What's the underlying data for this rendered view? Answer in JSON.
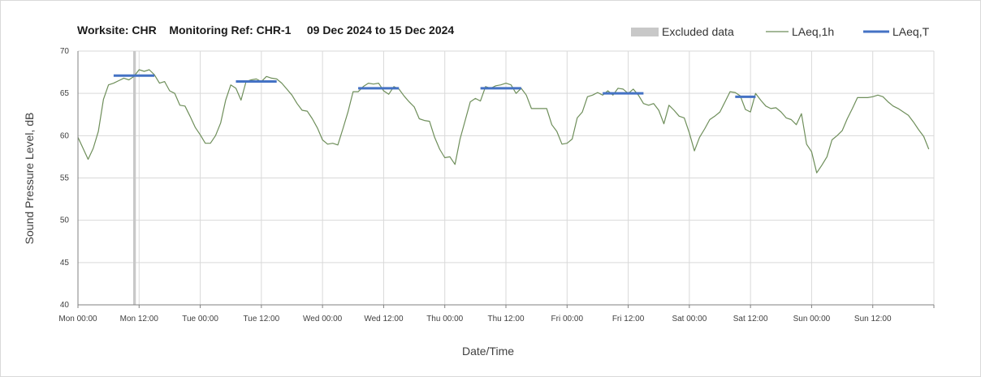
{
  "chart_data": {
    "type": "line",
    "title": "Worksite: CHR    Monitoring Ref: CHR-1     09 Dec 2024 to 15 Dec 2024",
    "xlabel": "Date/Time",
    "ylabel": "Sound Pressure Level, dB",
    "ylim": [
      40,
      70
    ],
    "yticks": [
      40,
      45,
      50,
      55,
      60,
      65,
      70
    ],
    "xlim": [
      0,
      168
    ],
    "xticks": [
      {
        "x": 0,
        "label": "Mon 00:00"
      },
      {
        "x": 12,
        "label": "Mon 12:00"
      },
      {
        "x": 24,
        "label": "Tue 00:00"
      },
      {
        "x": 36,
        "label": "Tue 12:00"
      },
      {
        "x": 48,
        "label": "Wed 00:00"
      },
      {
        "x": 60,
        "label": "Wed 12:00"
      },
      {
        "x": 72,
        "label": "Thu 00:00"
      },
      {
        "x": 84,
        "label": "Thu 12:00"
      },
      {
        "x": 96,
        "label": "Fri 00:00"
      },
      {
        "x": 108,
        "label": "Fri 12:00"
      },
      {
        "x": 120,
        "label": "Sat 00:00"
      },
      {
        "x": 132,
        "label": "Sat 12:00"
      },
      {
        "x": 144,
        "label": "Sun 00:00"
      },
      {
        "x": 156,
        "label": "Sun 12:00"
      }
    ],
    "grid": true,
    "legend_position": "top-right",
    "legend": {
      "excluded_label": "Excluded data",
      "hourly_label": "LAeq,1h",
      "period_label": "LAeq,T"
    },
    "colors": {
      "excluded": "#c8c8c8",
      "hourly": "#6e8e5a",
      "period": "#4472c4",
      "grid": "#d9d9d9"
    },
    "excluded_periods": [
      [
        11,
        12
      ]
    ],
    "series": [
      {
        "name": "LAeq,1h",
        "x": [
          0,
          1,
          2,
          3,
          4,
          5,
          6,
          7,
          8,
          9,
          10,
          11,
          12,
          13,
          14,
          15,
          16,
          17,
          18,
          19,
          20,
          21,
          22,
          23,
          24,
          25,
          26,
          27,
          28,
          29,
          30,
          31,
          32,
          33,
          34,
          35,
          36,
          37,
          38,
          39,
          40,
          41,
          42,
          43,
          44,
          45,
          46,
          47,
          48,
          49,
          50,
          51,
          52,
          53,
          54,
          55,
          56,
          57,
          58,
          59,
          60,
          61,
          62,
          63,
          64,
          65,
          66,
          67,
          68,
          69,
          70,
          71,
          72,
          73,
          74,
          75,
          76,
          77,
          78,
          79,
          80,
          81,
          82,
          83,
          84,
          85,
          86,
          87,
          88,
          89,
          90,
          91,
          92,
          93,
          94,
          95,
          96,
          97,
          98,
          99,
          100,
          101,
          102,
          103,
          104,
          105,
          106,
          107,
          108,
          109,
          110,
          111,
          112,
          113,
          114,
          115,
          116,
          117,
          118,
          119,
          120,
          121,
          122,
          123,
          124,
          125,
          126,
          127,
          128,
          129,
          130,
          131,
          132,
          133,
          134,
          135,
          136,
          137,
          138,
          139,
          140,
          141,
          142,
          143,
          144,
          145,
          146,
          147,
          148,
          149,
          150,
          151,
          152,
          153,
          154,
          155,
          156,
          157,
          158,
          159,
          160,
          161,
          162,
          163,
          164,
          165,
          166,
          167
        ],
        "y": [
          59.8,
          58.5,
          57.2,
          58.5,
          60.5,
          64.3,
          66.0,
          66.2,
          66.5,
          66.8,
          66.6,
          67.0,
          67.8,
          67.6,
          67.8,
          67.2,
          66.2,
          66.4,
          65.3,
          65.0,
          63.6,
          63.5,
          62.3,
          61.0,
          60.1,
          59.1,
          59.1,
          60.0,
          61.5,
          64.2,
          66.0,
          65.6,
          64.2,
          66.4,
          66.6,
          66.7,
          66.4,
          67.0,
          66.8,
          66.7,
          66.2,
          65.5,
          64.8,
          63.8,
          63.0,
          62.9,
          62.0,
          60.9,
          59.5,
          59.0,
          59.1,
          58.9,
          60.8,
          62.8,
          65.2,
          65.2,
          65.8,
          66.2,
          66.1,
          66.2,
          65.3,
          64.9,
          65.8,
          65.5,
          64.7,
          64.0,
          63.4,
          62.0,
          61.8,
          61.7,
          59.8,
          58.4,
          57.4,
          57.5,
          56.6,
          59.6,
          61.8,
          64.0,
          64.4,
          64.1,
          65.8,
          65.6,
          65.9,
          66.0,
          66.2,
          66.0,
          65.0,
          65.6,
          64.8,
          63.2,
          63.2,
          63.2,
          63.2,
          61.3,
          60.5,
          59.0,
          59.1,
          59.6,
          62.1,
          62.8,
          64.6,
          64.8,
          65.1,
          64.8,
          65.3,
          64.8,
          65.6,
          65.5,
          65.0,
          65.5,
          64.8,
          63.8,
          63.6,
          63.8,
          63.0,
          61.4,
          63.6,
          63.0,
          62.3,
          62.1,
          60.3,
          58.2,
          59.8,
          60.8,
          61.9,
          62.3,
          62.8,
          64.0,
          65.2,
          65.1,
          64.7,
          63.1,
          62.8,
          65.0,
          64.2,
          63.5,
          63.2,
          63.3,
          62.8,
          62.1,
          61.9,
          61.3,
          62.6,
          59.0,
          58.1,
          55.6,
          56.5,
          57.5,
          59.5,
          60.0,
          60.6,
          62.0,
          63.2,
          64.5,
          64.5,
          64.5,
          64.6,
          64.8,
          64.6,
          64.0,
          63.5,
          63.2,
          62.8,
          62.4,
          61.6,
          60.7,
          59.9,
          58.4
        ]
      },
      {
        "name": "LAeq,T",
        "segments": [
          {
            "x": [
              7,
              15
            ],
            "y": 67.1
          },
          {
            "x": [
              31,
              39
            ],
            "y": 66.4
          },
          {
            "x": [
              55,
              63
            ],
            "y": 65.6
          },
          {
            "x": [
              79,
              87
            ],
            "y": 65.6
          },
          {
            "x": [
              103,
              111
            ],
            "y": 65.0
          },
          {
            "x": [
              129,
              133
            ],
            "y": 64.6
          }
        ]
      }
    ]
  }
}
